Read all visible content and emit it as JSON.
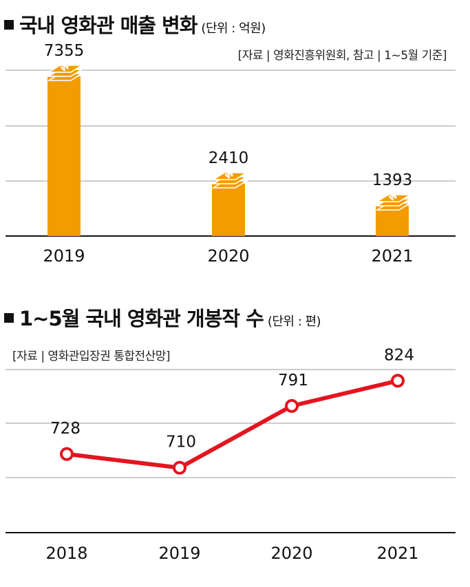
{
  "chart1": {
    "title": "국내 영화관 매출 변화",
    "unit": "(단위 : 억원)",
    "source": "[자료 |  영화진흥위원회, 참고 | 1~5월 기준]"
  },
  "chart2": {
    "title": "1~5월 국내 영화관 개봉작 수",
    "unit": "(단위 : 편)",
    "source": "[자료 | 영화관입장권 통합전산망]"
  },
  "colors": {
    "bar": "#f39c00",
    "line": "#e3151f",
    "axis": "#111111",
    "grid": "#999999"
  },
  "chart_data": [
    {
      "type": "bar",
      "title": "국내 영화관 매출 변화",
      "unit": "억원",
      "categories": [
        "2019",
        "2020",
        "2021"
      ],
      "values": [
        7355,
        2410,
        1393
      ],
      "ylim": [
        0,
        7700
      ],
      "grid": true,
      "icons": "money-stack-icon"
    },
    {
      "type": "line",
      "title": "1~5월 국내 영화관 개봉작 수",
      "unit": "편",
      "categories": [
        "2018",
        "2019",
        "2020",
        "2021"
      ],
      "values": [
        728,
        710,
        791,
        824
      ],
      "ylim": [
        625,
        845
      ],
      "grid": true
    }
  ]
}
